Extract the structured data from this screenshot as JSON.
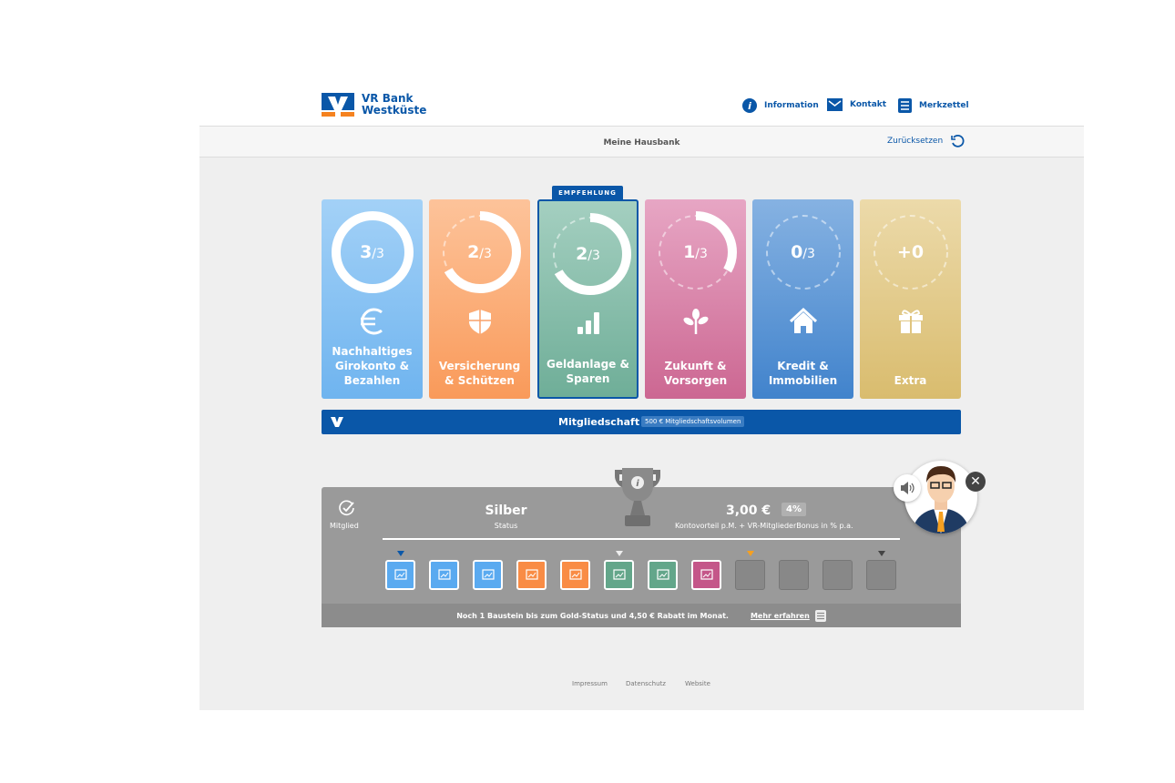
{
  "brand": {
    "name_line1": "VR Bank",
    "name_line2": "Westküste"
  },
  "nav": [
    {
      "label": "Information",
      "icon": "info-icon"
    },
    {
      "label": "Kontakt",
      "icon": "mail-icon"
    },
    {
      "label": "Merkzettel",
      "icon": "list-icon"
    }
  ],
  "subheader": {
    "title": "Meine Hausbank",
    "reset_label": "Zurücksetzen"
  },
  "recommendation_badge": "EMPFEHLUNG",
  "cards": [
    {
      "score": "3",
      "total": "/3",
      "label": "Nachhaltiges Girokonto & Bezahlen",
      "icon": "euro-icon",
      "color_top": "#a3d1f7",
      "color_bottom": "#6fb4ef",
      "progress": 1
    },
    {
      "score": "2",
      "total": "/3",
      "label": "Versicherung & Schützen",
      "icon": "shield-icon",
      "color_top": "#fdc39a",
      "color_bottom": "#f99a5a",
      "progress": 0.667
    },
    {
      "score": "2",
      "total": "/3",
      "label": "Geldanlage & Sparen",
      "icon": "bar-chart-icon",
      "color_top": "#a4cfc0",
      "color_bottom": "#6fae98",
      "progress": 0.667,
      "recommended": true
    },
    {
      "score": "1",
      "total": "/3",
      "label": "Zukunft & Vorsorgen",
      "icon": "plant-icon",
      "color_top": "#e7a6c4",
      "color_bottom": "#cc6792",
      "progress": 0.333
    },
    {
      "score": "0",
      "total": "/3",
      "label": "Kredit & Immobilien",
      "icon": "house-icon",
      "color_top": "#86b2e2",
      "color_bottom": "#4183cc",
      "progress": 0
    },
    {
      "score": "+0",
      "total": "",
      "label": "Extra",
      "icon": "gift-icon",
      "color_top": "#ecdaaa",
      "color_bottom": "#d9bc6e",
      "progress": 0
    }
  ],
  "membership": {
    "label": "Mitgliedschaft",
    "volume": "500 € Mitgliedschaftsvolumen"
  },
  "status": {
    "member_label": "Mitglied",
    "level": "Silber",
    "level_caption": "Status",
    "amount": "3,00 €",
    "percent": "4%",
    "amount_caption": "Kontovorteil p.M. + VR-MitgliederBonus in % p.a.",
    "note": "Noch 1 Baustein bis zum Gold-Status und 4,50 € Rabatt im Monat.",
    "more_label": "Mehr erfahren"
  },
  "tiles": [
    {
      "color": "#5aaaf0",
      "icon": "online-banking-icon"
    },
    {
      "color": "#5aaaf0",
      "icon": "coins-icon"
    },
    {
      "color": "#5aaaf0",
      "icon": "mobile-payment-icon"
    },
    {
      "color": "#f98c45",
      "icon": "umbrella-family-icon"
    },
    {
      "color": "#f98c45",
      "icon": "umbrella-disability-icon"
    },
    {
      "color": "#63a68a",
      "icon": "chart-icon"
    },
    {
      "color": "#63a68a",
      "icon": "chart-coins-icon"
    },
    {
      "color": "#c45689",
      "icon": "house-coins-icon"
    },
    {
      "color": null
    },
    {
      "color": null
    },
    {
      "color": null
    },
    {
      "color": null
    }
  ],
  "footer": [
    "Impressum",
    "Datenschutz",
    "Website"
  ]
}
